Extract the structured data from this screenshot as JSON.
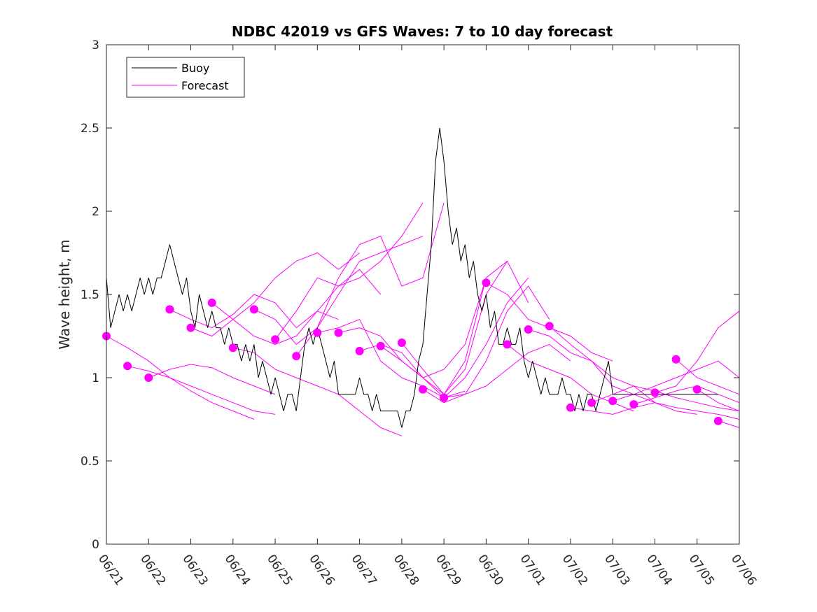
{
  "chart_data": {
    "type": "line",
    "title": "NDBC 42019 vs GFS Waves: 7 to 10 day forecast",
    "xlabel": "",
    "ylabel": "Wave height, m",
    "xlim": [
      0,
      15
    ],
    "ylim": [
      0,
      3
    ],
    "x_tick_labels": [
      "06/21",
      "06/22",
      "06/23",
      "06/24",
      "06/25",
      "06/26",
      "06/27",
      "06/28",
      "06/29",
      "06/30",
      "07/01",
      "07/02",
      "07/03",
      "07/04",
      "07/05",
      "07/06"
    ],
    "y_ticks": [
      0,
      0.5,
      1,
      1.5,
      2,
      2.5,
      3
    ],
    "y_tick_labels": [
      "0",
      "0.5",
      "1",
      "1.5",
      "2",
      "2.5",
      "3"
    ],
    "x_unit": "days since 06/21 00Z",
    "legend": {
      "position": "top-left",
      "entries": [
        "Buoy",
        "Forecast"
      ]
    },
    "colors": {
      "buoy": "#000000",
      "forecast": "#ff00ff",
      "marker": "#ff00ff"
    },
    "buoy": {
      "name": "Buoy",
      "x": [
        0.0,
        0.1,
        0.2,
        0.3,
        0.4,
        0.5,
        0.6,
        0.7,
        0.8,
        0.9,
        1.0,
        1.1,
        1.2,
        1.3,
        1.4,
        1.5,
        1.6,
        1.7,
        1.8,
        1.9,
        2.0,
        2.1,
        2.2,
        2.3,
        2.4,
        2.5,
        2.6,
        2.7,
        2.8,
        2.9,
        3.0,
        3.1,
        3.2,
        3.3,
        3.4,
        3.5,
        3.6,
        3.7,
        3.8,
        3.9,
        4.0,
        4.1,
        4.2,
        4.3,
        4.4,
        4.5,
        4.6,
        4.7,
        4.8,
        4.9,
        5.0,
        5.1,
        5.2,
        5.3,
        5.4,
        5.5,
        5.6,
        5.7,
        5.8,
        5.9,
        6.0,
        6.1,
        6.2,
        6.3,
        6.4,
        6.5,
        6.6,
        6.7,
        6.8,
        6.9,
        7.0,
        7.1,
        7.2,
        7.3,
        7.4,
        7.5,
        7.6,
        7.7,
        7.8,
        7.9,
        8.0,
        8.1,
        8.2,
        8.3,
        8.4,
        8.5,
        8.6,
        8.7,
        8.8,
        8.9,
        9.0,
        9.1,
        9.2,
        9.3,
        9.4,
        9.5,
        9.6,
        9.7,
        9.8,
        9.9,
        10.0,
        10.1,
        10.2,
        10.3,
        10.4,
        10.5,
        10.6,
        10.7,
        10.8,
        10.9,
        11.0,
        11.1,
        11.2,
        11.3,
        11.4,
        11.5,
        11.6,
        11.7,
        11.8,
        11.9,
        12.0,
        12.1,
        12.2,
        12.3,
        12.4,
        12.5,
        12.6,
        12.7,
        12.8,
        12.9,
        13.0,
        13.1,
        13.2,
        13.3,
        13.4,
        13.5,
        13.6,
        13.7,
        13.8,
        13.9,
        14.0,
        14.1,
        14.2,
        14.3,
        14.4,
        14.5
      ],
      "y": [
        1.6,
        1.3,
        1.4,
        1.5,
        1.4,
        1.5,
        1.4,
        1.5,
        1.6,
        1.5,
        1.6,
        1.5,
        1.6,
        1.6,
        1.7,
        1.8,
        1.7,
        1.6,
        1.5,
        1.6,
        1.4,
        1.3,
        1.5,
        1.4,
        1.3,
        1.4,
        1.3,
        1.3,
        1.2,
        1.3,
        1.2,
        1.2,
        1.1,
        1.2,
        1.1,
        1.2,
        1.0,
        1.1,
        1.0,
        0.9,
        1.0,
        0.9,
        0.8,
        0.9,
        0.9,
        0.8,
        1.0,
        1.2,
        1.3,
        1.2,
        1.3,
        1.2,
        1.1,
        1.0,
        1.1,
        0.9,
        0.9,
        0.9,
        0.9,
        0.9,
        1.0,
        0.9,
        0.9,
        0.8,
        0.9,
        0.8,
        0.8,
        0.8,
        0.8,
        0.8,
        0.7,
        0.8,
        0.8,
        0.9,
        1.1,
        1.2,
        1.5,
        1.8,
        2.3,
        2.5,
        2.3,
        2.0,
        1.8,
        1.9,
        1.7,
        1.8,
        1.6,
        1.7,
        1.5,
        1.4,
        1.5,
        1.3,
        1.4,
        1.2,
        1.2,
        1.3,
        1.2,
        1.2,
        1.3,
        1.1,
        1.0,
        1.1,
        1.0,
        0.9,
        1.0,
        0.9,
        0.9,
        0.9,
        1.0,
        0.9,
        0.9,
        0.8,
        0.9,
        0.8,
        0.9,
        0.9,
        0.8,
        0.9,
        1.0,
        1.1,
        0.9,
        0.9,
        0.9,
        0.9,
        0.9,
        0.9,
        0.9,
        0.9,
        0.9,
        0.9,
        0.9,
        0.9,
        0.9,
        0.9,
        0.9,
        0.9,
        0.9,
        0.9,
        0.9,
        0.9,
        0.9,
        0.9,
        0.9,
        0.9,
        0.9,
        0.9
      ]
    },
    "series": [
      {
        "x": [
          0.0,
          0.5,
          1.0,
          1.5,
          2.0,
          2.5,
          3.0,
          3.5
        ],
        "y": [
          1.25,
          1.18,
          1.1,
          1.0,
          0.92,
          0.85,
          0.8,
          0.75
        ]
      },
      {
        "x": [
          0.5,
          1.0,
          1.5,
          2.0,
          2.5,
          3.0,
          3.5,
          4.0
        ],
        "y": [
          1.07,
          1.04,
          1.0,
          0.95,
          0.9,
          0.85,
          0.8,
          0.78
        ]
      },
      {
        "x": [
          1.0,
          1.5,
          2.0,
          2.5,
          3.0,
          3.5,
          4.0
        ],
        "y": [
          1.0,
          1.05,
          1.08,
          1.06,
          1.0,
          0.95,
          0.9
        ]
      },
      {
        "x": [
          1.5,
          2.0,
          2.5,
          3.0,
          3.5,
          4.0,
          4.5,
          5.0,
          5.5
        ],
        "y": [
          1.41,
          1.35,
          1.3,
          1.38,
          1.5,
          1.45,
          1.3,
          1.4,
          1.35
        ]
      },
      {
        "x": [
          2.0,
          2.5,
          3.0,
          3.5,
          4.0,
          4.5,
          5.0,
          5.5,
          6.0
        ],
        "y": [
          1.3,
          1.25,
          1.35,
          1.45,
          1.6,
          1.7,
          1.75,
          1.65,
          1.75
        ]
      },
      {
        "x": [
          2.5,
          3.0,
          3.5,
          4.0,
          4.5,
          5.0,
          5.5,
          6.0,
          6.5
        ],
        "y": [
          1.45,
          1.35,
          1.25,
          1.2,
          1.25,
          1.4,
          1.55,
          1.65,
          1.5
        ]
      },
      {
        "x": [
          3.0,
          3.5,
          4.0,
          4.5,
          5.0,
          5.5,
          6.0,
          6.5,
          7.0
        ],
        "y": [
          1.18,
          1.15,
          1.05,
          1.0,
          0.95,
          0.9,
          0.8,
          0.7,
          0.65
        ]
      },
      {
        "x": [
          3.5,
          4.0,
          4.5,
          5.0,
          5.5,
          6.0,
          6.5,
          7.0,
          7.5
        ],
        "y": [
          1.41,
          1.35,
          1.2,
          1.3,
          1.5,
          1.7,
          1.75,
          1.8,
          1.85
        ]
      },
      {
        "x": [
          4.0,
          4.5,
          5.0,
          5.5,
          6.0,
          6.5,
          7.0,
          7.5
        ],
        "y": [
          1.23,
          1.4,
          1.6,
          1.55,
          1.6,
          1.7,
          1.85,
          2.05
        ]
      },
      {
        "x": [
          4.5,
          5.0,
          5.5,
          6.0,
          6.5,
          7.0,
          7.5,
          8.0
        ],
        "y": [
          1.13,
          1.3,
          1.6,
          1.8,
          1.85,
          1.55,
          1.6,
          2.05
        ]
      },
      {
        "x": [
          5.0,
          5.5,
          6.0,
          6.5,
          7.0,
          7.5,
          8.0,
          8.5
        ],
        "y": [
          1.27,
          1.3,
          1.35,
          1.1,
          1.0,
          0.95,
          0.88,
          0.92
        ]
      },
      {
        "x": [
          5.5,
          6.0,
          6.5,
          7.0,
          7.5,
          8.0,
          8.5,
          9.0
        ],
        "y": [
          1.27,
          1.3,
          1.25,
          1.1,
          1.0,
          1.05,
          1.2,
          1.6
        ]
      },
      {
        "x": [
          6.0,
          6.5,
          7.0,
          7.5,
          8.0,
          8.5,
          9.0,
          9.5
        ],
        "y": [
          1.16,
          1.2,
          1.15,
          1.0,
          0.9,
          1.05,
          1.5,
          1.7
        ]
      },
      {
        "x": [
          6.5,
          7.0,
          7.5,
          8.0,
          8.5,
          9.0,
          9.5,
          10.0
        ],
        "y": [
          1.19,
          1.1,
          1.0,
          0.88,
          1.0,
          1.2,
          1.45,
          1.6
        ]
      },
      {
        "x": [
          7.0,
          7.5,
          8.0,
          8.5,
          9.0,
          9.5,
          10.0
        ],
        "y": [
          1.21,
          1.05,
          0.9,
          1.1,
          1.6,
          1.7,
          1.45
        ]
      },
      {
        "x": [
          7.5,
          8.0,
          8.5,
          9.0,
          9.5,
          10.0,
          10.5
        ],
        "y": [
          0.93,
          0.85,
          0.9,
          1.1,
          1.4,
          1.55,
          1.35
        ]
      },
      {
        "x": [
          8.0,
          8.5,
          9.0,
          9.5,
          10.0,
          10.5,
          11.0
        ],
        "y": [
          0.88,
          0.9,
          0.95,
          1.05,
          1.15,
          1.2,
          1.1
        ]
      },
      {
        "x": [
          9.0,
          9.5,
          10.0,
          10.5,
          11.0,
          11.5,
          12.0
        ],
        "y": [
          1.57,
          1.5,
          1.35,
          1.3,
          1.25,
          1.15,
          1.1
        ]
      },
      {
        "x": [
          9.5,
          10.0,
          10.5,
          11.0,
          11.5,
          12.0,
          12.5
        ],
        "y": [
          1.2,
          1.1,
          1.05,
          1.0,
          0.9,
          0.85,
          0.8
        ]
      },
      {
        "x": [
          10.0,
          10.5,
          11.0,
          11.5,
          12.0,
          12.5,
          13.0
        ],
        "y": [
          1.29,
          1.25,
          1.15,
          1.1,
          0.95,
          0.9,
          0.85
        ]
      },
      {
        "x": [
          10.5,
          11.0,
          11.5,
          12.0,
          12.5,
          13.0,
          13.5,
          14.0
        ],
        "y": [
          1.31,
          1.2,
          1.1,
          1.0,
          0.95,
          0.85,
          0.8,
          0.78
        ]
      },
      {
        "x": [
          11.0,
          11.5,
          12.0,
          12.5,
          13.0,
          13.5,
          14.0,
          14.5,
          15.0
        ],
        "y": [
          0.82,
          0.8,
          0.78,
          0.82,
          0.85,
          0.82,
          0.8,
          0.78,
          0.75
        ]
      },
      {
        "x": [
          11.5,
          12.0,
          12.5,
          13.0,
          13.5,
          14.0,
          14.5,
          15.0
        ],
        "y": [
          0.85,
          0.9,
          0.95,
          0.92,
          0.88,
          0.85,
          0.82,
          0.8
        ]
      },
      {
        "x": [
          12.0,
          12.5,
          13.0,
          13.5,
          14.0,
          14.5,
          15.0
        ],
        "y": [
          0.86,
          0.9,
          0.95,
          1.0,
          1.05,
          1.1,
          1.0
        ]
      },
      {
        "x": [
          12.5,
          13.0,
          13.5,
          14.0,
          14.5,
          15.0
        ],
        "y": [
          0.84,
          0.88,
          0.92,
          0.95,
          0.9,
          0.85
        ]
      },
      {
        "x": [
          13.0,
          13.5,
          14.0,
          14.5,
          15.0
        ],
        "y": [
          0.91,
          0.95,
          1.1,
          1.3,
          1.4
        ]
      },
      {
        "x": [
          13.5,
          14.0,
          14.5,
          15.0
        ],
        "y": [
          1.11,
          1.0,
          0.95,
          0.9
        ]
      },
      {
        "x": [
          14.0,
          14.5,
          15.0
        ],
        "y": [
          0.93,
          0.85,
          0.8
        ]
      },
      {
        "x": [
          14.5,
          15.0
        ],
        "y": [
          0.74,
          0.7
        ]
      }
    ],
    "markers": {
      "x": [
        0.0,
        0.5,
        1.0,
        1.5,
        2.0,
        2.5,
        3.0,
        3.5,
        4.0,
        4.5,
        5.0,
        5.5,
        6.0,
        6.5,
        7.0,
        7.5,
        8.0,
        9.0,
        9.5,
        10.0,
        10.5,
        11.0,
        11.5,
        12.0,
        12.5,
        13.0,
        13.5,
        14.0,
        14.5
      ],
      "y": [
        1.25,
        1.07,
        1.0,
        1.41,
        1.3,
        1.45,
        1.18,
        1.41,
        1.23,
        1.13,
        1.27,
        1.27,
        1.16,
        1.19,
        1.21,
        0.93,
        0.88,
        1.57,
        1.2,
        1.29,
        1.31,
        0.82,
        0.85,
        0.86,
        0.84,
        0.91,
        1.11,
        0.93,
        0.74
      ]
    }
  }
}
